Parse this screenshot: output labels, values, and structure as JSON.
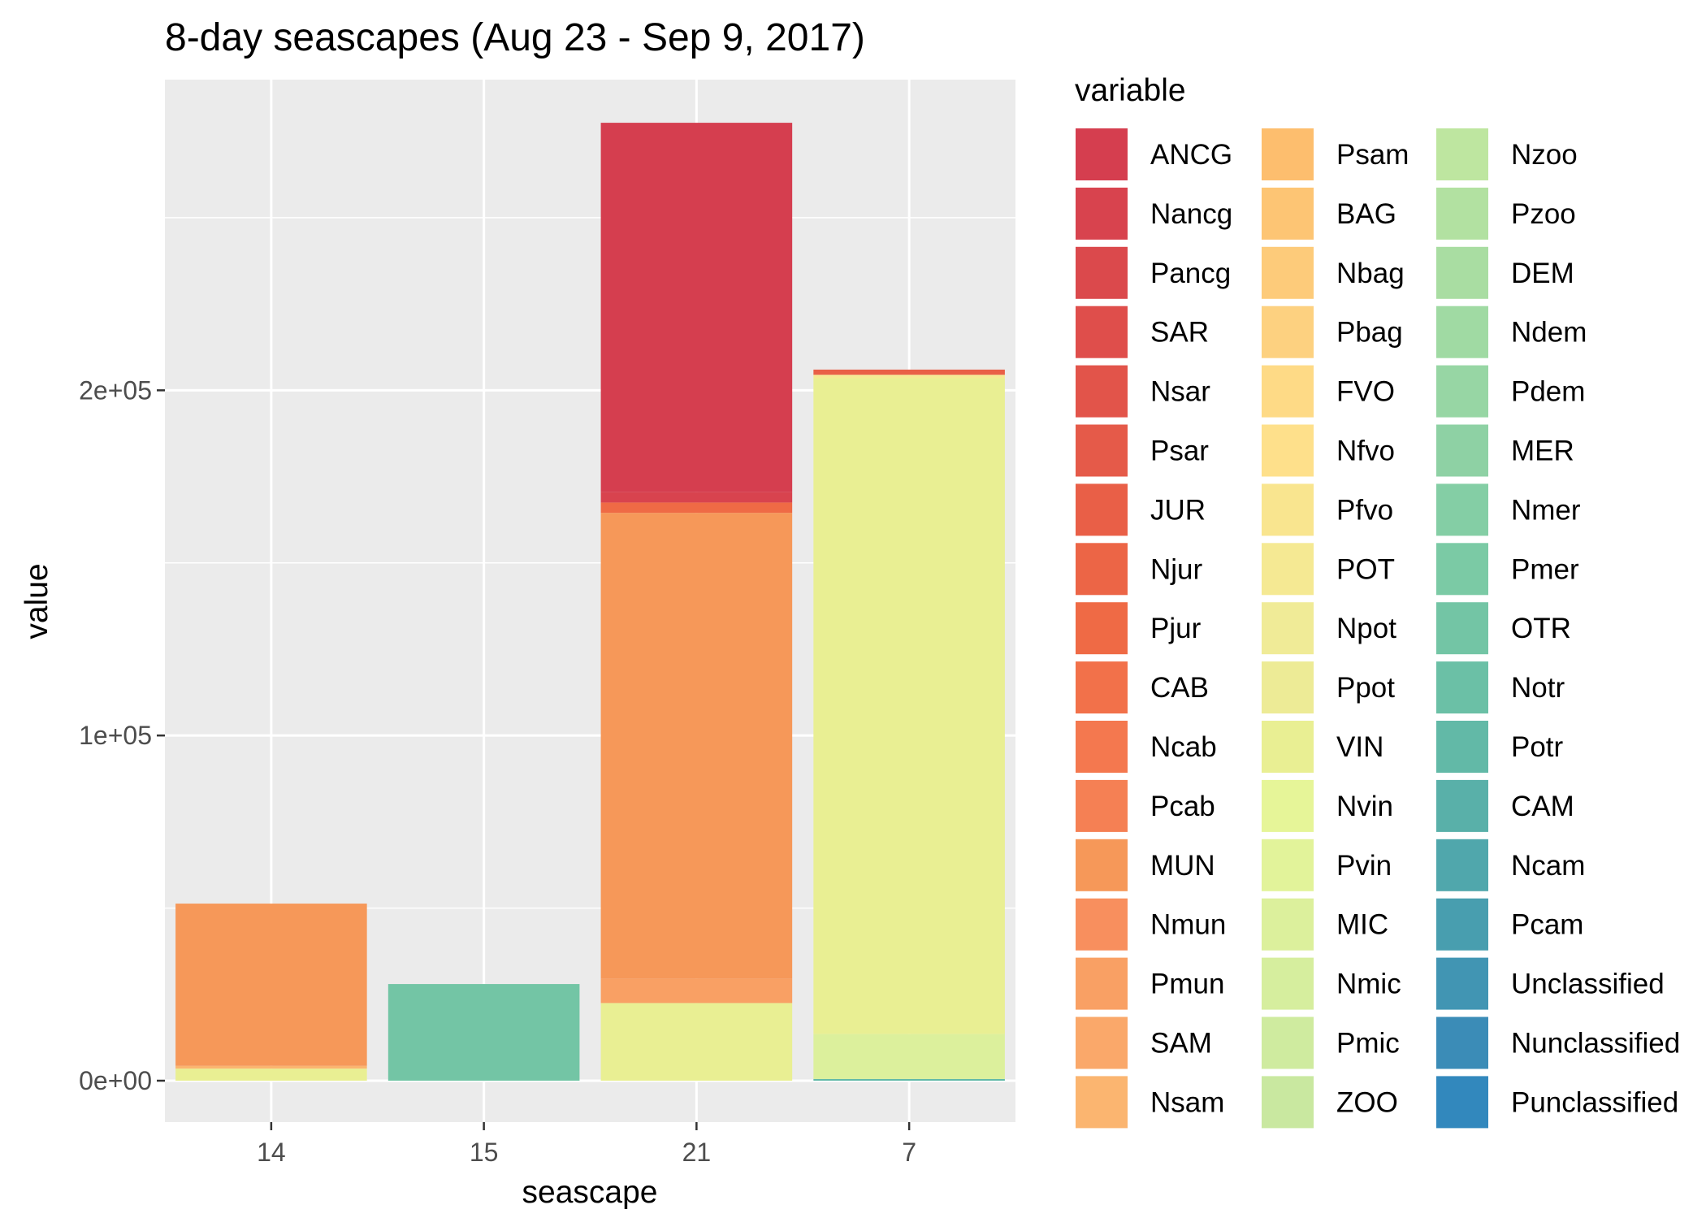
{
  "chart_data": {
    "type": "bar",
    "stacked": true,
    "title": "8-day seascapes (Aug 23 - Sep 9, 2017)",
    "xlabel": "seascape",
    "ylabel": "value",
    "categories": [
      "14",
      "15",
      "21",
      "7"
    ],
    "ylim": [
      -12000,
      290000
    ],
    "y_ticks": [
      {
        "value": 0,
        "label": "0e+00"
      },
      {
        "value": 100000,
        "label": "1e+05"
      },
      {
        "value": 200000,
        "label": "2e+05"
      }
    ],
    "grid": true,
    "legend": {
      "title": "variable",
      "placement": "right",
      "columns": 3
    },
    "series": [
      {
        "name": "ANCG",
        "color": "#D53E4F",
        "values": [
          0,
          0,
          107000,
          0
        ]
      },
      {
        "name": "Nancg",
        "color": "#D8434E",
        "values": [
          0,
          0,
          3000,
          0
        ]
      },
      {
        "name": "Pancg",
        "color": "#DB494C",
        "values": [
          0,
          0,
          0,
          0
        ]
      },
      {
        "name": "SAR",
        "color": "#DF4E4B",
        "values": [
          0,
          0,
          0,
          0
        ]
      },
      {
        "name": "Nsar",
        "color": "#E2544A",
        "values": [
          0,
          0,
          0,
          0
        ]
      },
      {
        "name": "Psar",
        "color": "#E55A49",
        "values": [
          0,
          0,
          0,
          0
        ]
      },
      {
        "name": "JUR",
        "color": "#E95F47",
        "values": [
          0,
          0,
          0,
          1500
        ]
      },
      {
        "name": "Njur",
        "color": "#EC6546",
        "values": [
          0,
          0,
          0,
          0
        ]
      },
      {
        "name": "Pjur",
        "color": "#EF6A45",
        "values": [
          0,
          0,
          3000,
          0
        ]
      },
      {
        "name": "CAB",
        "color": "#F2714A",
        "values": [
          0,
          0,
          0,
          0
        ]
      },
      {
        "name": "Ncab",
        "color": "#F4784F",
        "values": [
          0,
          0,
          0,
          0
        ]
      },
      {
        "name": "Pcab",
        "color": "#F58054",
        "values": [
          0,
          0,
          0,
          0
        ]
      },
      {
        "name": "MUN",
        "color": "#F69859",
        "values": [
          47000,
          0,
          135000,
          0
        ]
      },
      {
        "name": "Nmun",
        "color": "#F88F5E",
        "values": [
          0,
          0,
          0,
          0
        ]
      },
      {
        "name": "Pmun",
        "color": "#F9A064",
        "values": [
          0,
          0,
          7000,
          0
        ]
      },
      {
        "name": "SAM",
        "color": "#FAA86A",
        "values": [
          0,
          0,
          0,
          0
        ]
      },
      {
        "name": "Nsam",
        "color": "#FBB570",
        "values": [
          800,
          0,
          0,
          0
        ]
      },
      {
        "name": "Psam",
        "color": "#FDBE6E",
        "values": [
          0,
          0,
          0,
          0
        ]
      },
      {
        "name": "BAG",
        "color": "#FDC574",
        "values": [
          0,
          0,
          0,
          0
        ]
      },
      {
        "name": "Nbag",
        "color": "#FDCB7A",
        "values": [
          0,
          0,
          0,
          0
        ]
      },
      {
        "name": "Pbag",
        "color": "#FDD180",
        "values": [
          0,
          0,
          0,
          0
        ]
      },
      {
        "name": "FVO",
        "color": "#FEDA86",
        "values": [
          0,
          0,
          0,
          0
        ]
      },
      {
        "name": "Nfvo",
        "color": "#FEE08B",
        "values": [
          0,
          0,
          0,
          0
        ]
      },
      {
        "name": "Pfvo",
        "color": "#F9E58F",
        "values": [
          0,
          0,
          0,
          0
        ]
      },
      {
        "name": "POT",
        "color": "#F5E993",
        "values": [
          0,
          0,
          0,
          1000
        ]
      },
      {
        "name": "Npot",
        "color": "#F0EB97",
        "values": [
          0,
          0,
          0,
          0
        ]
      },
      {
        "name": "Ppot",
        "color": "#EDEB96",
        "values": [
          0,
          0,
          0,
          0
        ]
      },
      {
        "name": "VIN",
        "color": "#E9EF93",
        "values": [
          3500,
          0,
          22500,
          190000
        ]
      },
      {
        "name": "Nvin",
        "color": "#E6F598",
        "values": [
          0,
          0,
          0,
          0
        ]
      },
      {
        "name": "Pvin",
        "color": "#E2F39A",
        "values": [
          0,
          0,
          0,
          0
        ]
      },
      {
        "name": "MIC",
        "color": "#DCF09C",
        "values": [
          0,
          0,
          0,
          13000
        ]
      },
      {
        "name": "Nmic",
        "color": "#D6EE9E",
        "values": [
          0,
          0,
          0,
          0
        ]
      },
      {
        "name": "Pmic",
        "color": "#CFEB9F",
        "values": [
          0,
          0,
          0,
          0
        ]
      },
      {
        "name": "ZOO",
        "color": "#C9E8A0",
        "values": [
          0,
          0,
          0,
          0
        ]
      },
      {
        "name": "Nzoo",
        "color": "#BEE6A0",
        "values": [
          0,
          0,
          0,
          0
        ]
      },
      {
        "name": "Pzoo",
        "color": "#B2E1A1",
        "values": [
          0,
          0,
          0,
          0
        ]
      },
      {
        "name": "DEM",
        "color": "#A9DDA2",
        "values": [
          0,
          0,
          0,
          0
        ]
      },
      {
        "name": "Ndem",
        "color": "#A0DAA3",
        "values": [
          0,
          0,
          0,
          0
        ]
      },
      {
        "name": "Pdem",
        "color": "#97D6A4",
        "values": [
          0,
          0,
          0,
          0
        ]
      },
      {
        "name": "MER",
        "color": "#8ED1A4",
        "values": [
          0,
          0,
          0,
          0
        ]
      },
      {
        "name": "Nmer",
        "color": "#84CEA5",
        "values": [
          0,
          0,
          0,
          0
        ]
      },
      {
        "name": "Pmer",
        "color": "#7BCAA5",
        "values": [
          0,
          0,
          0,
          0
        ]
      },
      {
        "name": "OTR",
        "color": "#73C5A5",
        "values": [
          0,
          28000,
          0,
          0
        ]
      },
      {
        "name": "Notr",
        "color": "#6BC0A6",
        "values": [
          0,
          0,
          0,
          0
        ]
      },
      {
        "name": "Potr",
        "color": "#62B9A7",
        "values": [
          0,
          0,
          0,
          500
        ]
      },
      {
        "name": "CAM",
        "color": "#59B0A9",
        "values": [
          0,
          0,
          0,
          0
        ]
      },
      {
        "name": "Ncam",
        "color": "#50A7AC",
        "values": [
          0,
          0,
          0,
          0
        ]
      },
      {
        "name": "Pcam",
        "color": "#489EAF",
        "values": [
          0,
          0,
          0,
          0
        ]
      },
      {
        "name": "Unclassified",
        "color": "#4195B3",
        "values": [
          0,
          0,
          0,
          0
        ]
      },
      {
        "name": "Nunclassified",
        "color": "#3B8CB7",
        "values": [
          0,
          0,
          0,
          0
        ]
      },
      {
        "name": "Punclassified",
        "color": "#3288BD",
        "values": [
          0,
          0,
          0,
          0
        ]
      }
    ]
  }
}
